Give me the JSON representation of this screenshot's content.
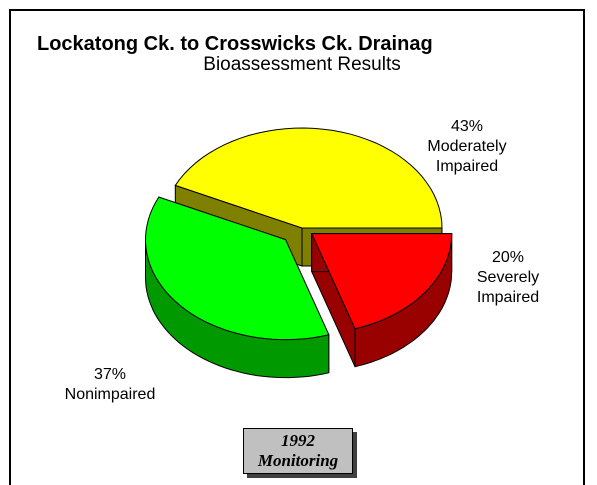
{
  "chart_data": {
    "type": "pie3d",
    "title": "Lockatong Ck. to Crosswicks Ck. Drainag",
    "subtitle": "Bioassessment Results",
    "categories": [
      "Moderately Impaired",
      "Nonimpaired",
      "Severely Impaired"
    ],
    "values": [
      43,
      37,
      20
    ],
    "value_labels": [
      "43%",
      "37%",
      "20%"
    ],
    "colors": [
      "#ffff00",
      "#00ff00",
      "#ff0000"
    ],
    "side_colors": [
      "#808000",
      "#009900",
      "#990000"
    ],
    "annotation": "1992 Monitoring"
  }
}
